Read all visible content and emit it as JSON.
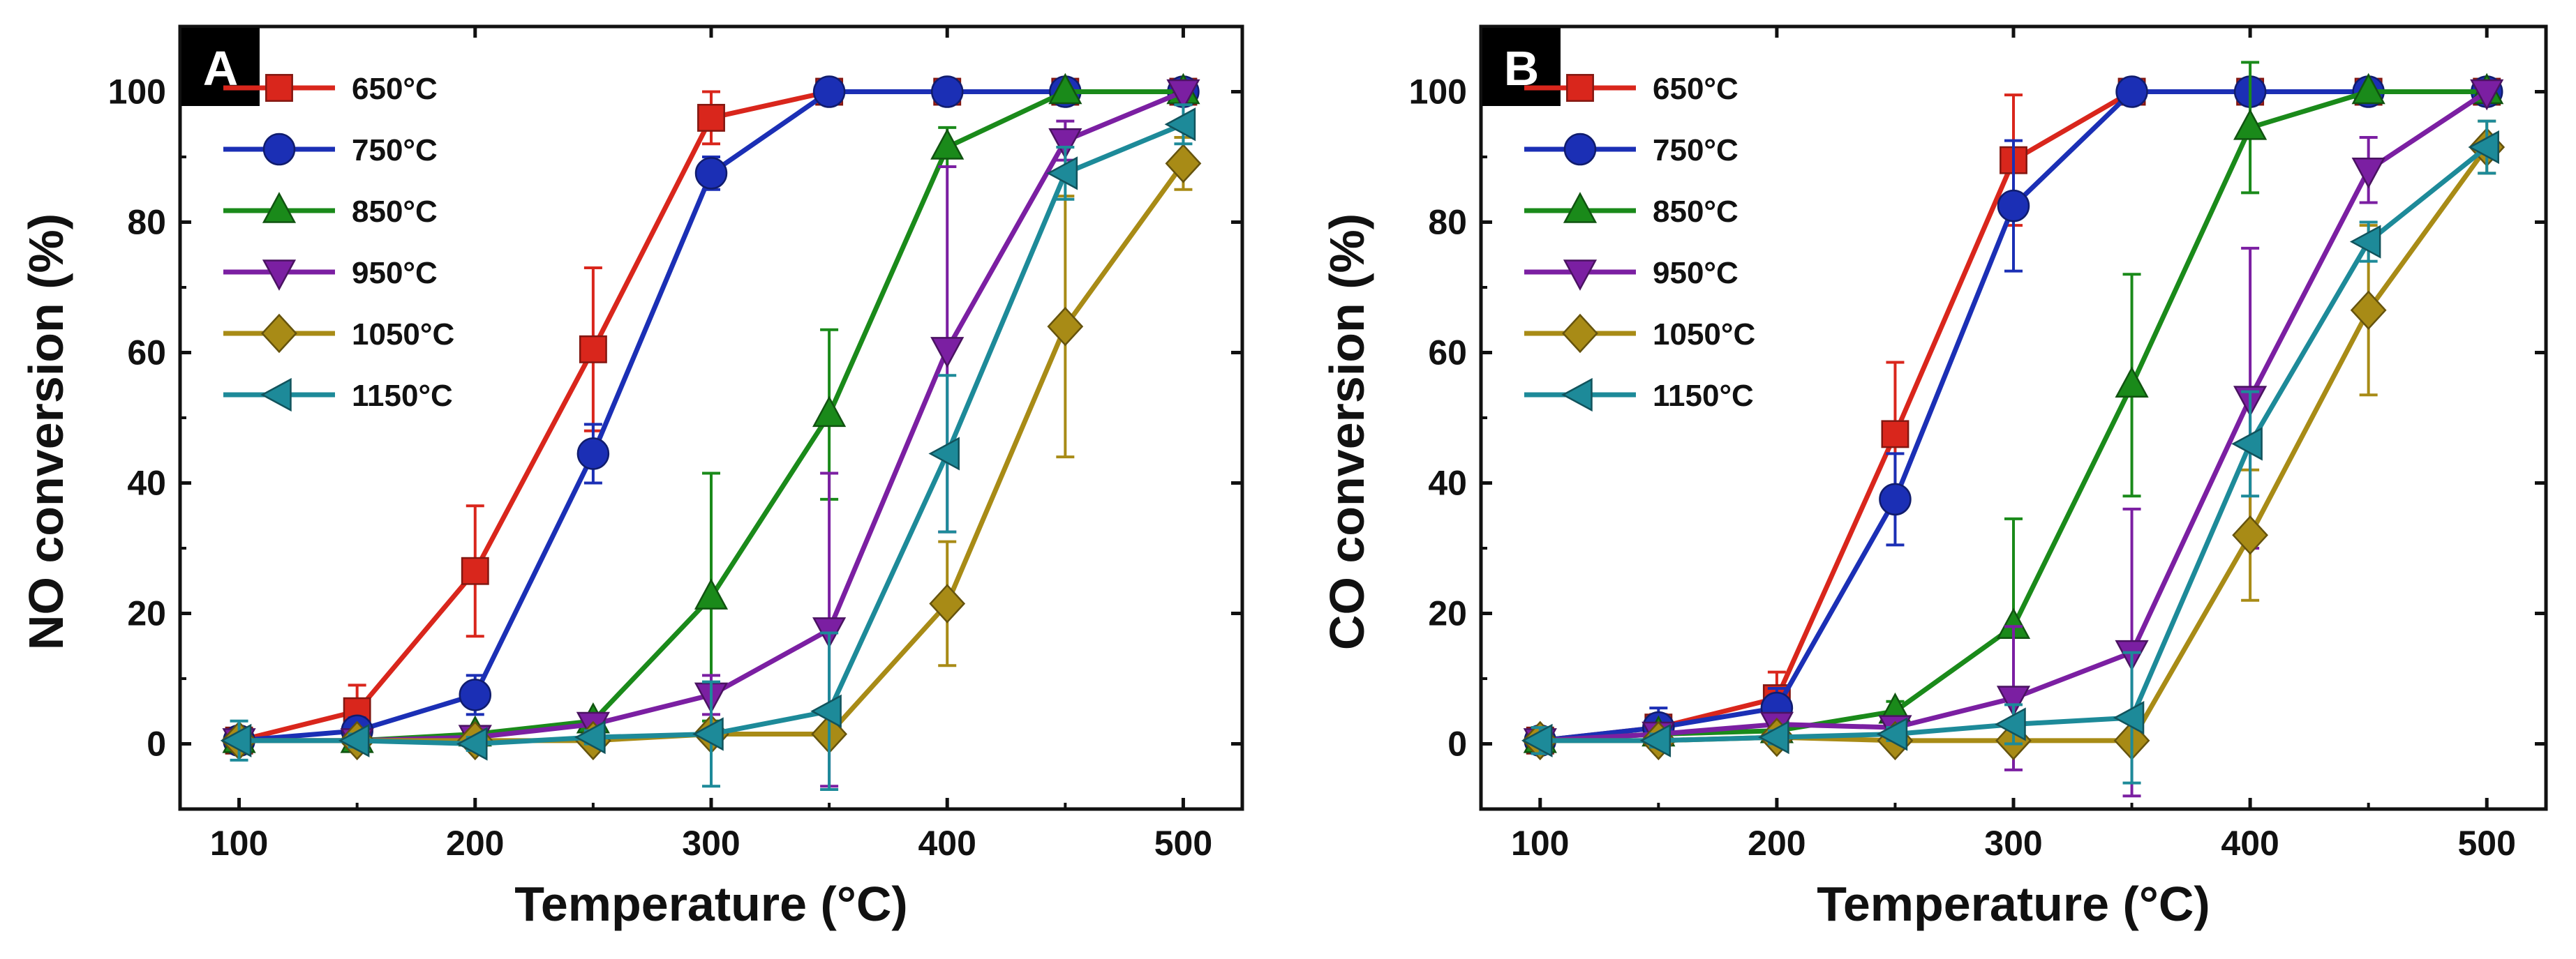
{
  "chart_data": [
    {
      "type": "line",
      "panel_label": "A",
      "xlabel": "Temperature (°C)",
      "ylabel": "NO conversion (%)",
      "xlim": [
        75,
        525
      ],
      "ylim": [
        -10,
        110
      ],
      "xticks": [
        100,
        200,
        300,
        400,
        500
      ],
      "yticks": [
        0,
        20,
        40,
        60,
        80,
        100
      ],
      "grid": false,
      "legend_position": "top-left",
      "x": [
        100,
        150,
        200,
        250,
        300,
        350,
        400,
        450,
        500
      ],
      "series": [
        {
          "name": "650°C",
          "color": "#d9261c",
          "marker": "square",
          "values": [
            0.5,
            5,
            26.5,
            60.5,
            96,
            100,
            100,
            100,
            100
          ],
          "errors": [
            1,
            4,
            10,
            12.5,
            4,
            0,
            0,
            0,
            0
          ]
        },
        {
          "name": "750°C",
          "color": "#1b2fb5",
          "marker": "circle",
          "values": [
            0.5,
            2,
            7.5,
            44.5,
            87.5,
            100,
            100,
            100,
            100
          ],
          "errors": [
            1,
            2,
            3,
            4.5,
            2.5,
            0,
            0,
            0,
            0
          ]
        },
        {
          "name": "850°C",
          "color": "#1a8a1a",
          "marker": "triangle-up",
          "values": [
            0.5,
            0.5,
            1.5,
            3.5,
            22.5,
            50.5,
            91.5,
            100,
            100
          ],
          "errors": [
            1,
            1,
            1,
            1,
            19,
            13,
            3,
            0,
            0
          ]
        },
        {
          "name": "950°C",
          "color": "#7b1fa2",
          "marker": "triangle-down",
          "values": [
            0.5,
            0.5,
            1,
            3,
            7.5,
            17.5,
            60.5,
            92.5,
            100
          ],
          "errors": [
            1,
            1,
            1,
            1,
            3,
            24,
            28,
            3,
            0
          ]
        },
        {
          "name": "1050°C",
          "color": "#a88b16",
          "marker": "diamond",
          "values": [
            0.5,
            0.5,
            0.5,
            0.5,
            1.5,
            1.5,
            21.5,
            64,
            89
          ],
          "errors": [
            1,
            1,
            1,
            1,
            1,
            1,
            9.5,
            20,
            4
          ]
        },
        {
          "name": "1150°C",
          "color": "#1d8a99",
          "marker": "triangle-left",
          "values": [
            0.5,
            0.5,
            0,
            1,
            1.5,
            5,
            44.5,
            87.5,
            95
          ],
          "errors": [
            3,
            1,
            1,
            1,
            8,
            12,
            12,
            4,
            3
          ]
        }
      ]
    },
    {
      "type": "line",
      "panel_label": "B",
      "xlabel": "Temperature (°C)",
      "ylabel": "CO conversion (%)",
      "xlim": [
        75,
        525
      ],
      "ylim": [
        -10,
        110
      ],
      "xticks": [
        100,
        200,
        300,
        400,
        500
      ],
      "yticks": [
        0,
        20,
        40,
        60,
        80,
        100
      ],
      "grid": false,
      "legend_position": "top-left",
      "x": [
        100,
        150,
        200,
        250,
        300,
        350,
        400,
        450,
        500
      ],
      "series": [
        {
          "name": "650°C",
          "color": "#d9261c",
          "marker": "square",
          "values": [
            0.5,
            2.5,
            7,
            47.5,
            89.5,
            100,
            100,
            100,
            100
          ],
          "errors": [
            1,
            2,
            4,
            11,
            10,
            0,
            0,
            0,
            0
          ]
        },
        {
          "name": "750°C",
          "color": "#1b2fb5",
          "marker": "circle",
          "values": [
            0.5,
            2.5,
            5.5,
            37.5,
            82.5,
            100,
            100,
            100,
            100
          ],
          "errors": [
            1,
            3,
            3,
            7,
            10,
            0,
            0,
            0,
            0
          ]
        },
        {
          "name": "850°C",
          "color": "#1a8a1a",
          "marker": "triangle-up",
          "values": [
            0.5,
            1.5,
            2,
            5,
            18,
            55,
            94.5,
            100,
            100
          ],
          "errors": [
            2,
            1,
            1,
            1.5,
            16.5,
            17,
            10,
            0,
            0
          ]
        },
        {
          "name": "950°C",
          "color": "#7b1fa2",
          "marker": "triangle-down",
          "values": [
            0.5,
            1.5,
            3,
            2.5,
            7,
            14,
            53,
            88,
            100
          ],
          "errors": [
            1,
            1,
            1,
            1,
            11,
            22,
            23,
            5,
            0
          ]
        },
        {
          "name": "1050°C",
          "color": "#a88b16",
          "marker": "diamond",
          "values": [
            0.5,
            0.5,
            1,
            0.5,
            0.5,
            0.5,
            32,
            66.5,
            91.5
          ],
          "errors": [
            1,
            1,
            1,
            1,
            1,
            1,
            10,
            13,
            4
          ]
        },
        {
          "name": "1150°C",
          "color": "#1d8a99",
          "marker": "triangle-left",
          "values": [
            0.5,
            0.5,
            1,
            1.5,
            3,
            4,
            46,
            77,
            91.5
          ],
          "errors": [
            2,
            1,
            1,
            1,
            3,
            10,
            8,
            3,
            4
          ]
        }
      ]
    }
  ]
}
